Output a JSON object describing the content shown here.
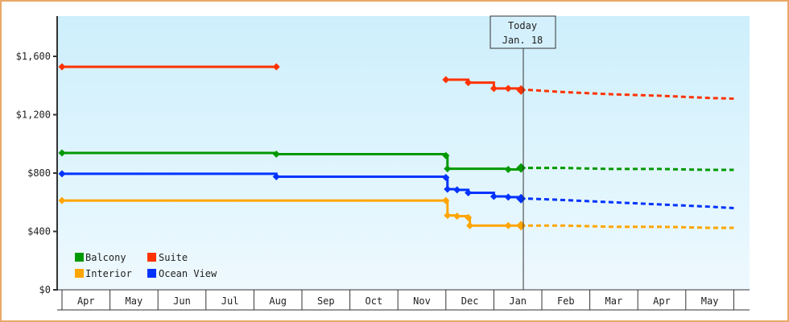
{
  "chart_data": {
    "type": "line",
    "title": "",
    "xlabel": "",
    "ylabel": "",
    "ylim": [
      0,
      1900
    ],
    "y_ticks": [
      "$0",
      "$400",
      "$800",
      "$1,200",
      "$1,600"
    ],
    "y_tick_values": [
      0,
      400,
      800,
      1200,
      1600
    ],
    "x_tick_labels": [
      "Apr",
      "May",
      "Jun",
      "Jul",
      "Aug",
      "Sep",
      "Oct",
      "Nov",
      "Dec",
      "Jan",
      "Feb",
      "Mar",
      "Apr",
      "May"
    ],
    "grid": false,
    "legend_position": "lower-left",
    "annotation": {
      "line1": "Today",
      "line2": "Jan. 18"
    },
    "colors": {
      "Balcony": "#009900",
      "Suite": "#ff3300",
      "Interior": "#ffa500",
      "Ocean View": "#0033ff"
    },
    "series": [
      {
        "name": "Suite",
        "segments": [
          {
            "x": [
              "Apr 1",
              "Aug 15"
            ],
            "values": [
              1528,
              1528
            ]
          }
        ],
        "history": {
          "x": [
            "Dec 1",
            "Dec 15",
            "Jan 1",
            "Jan 10",
            "Jan 18"
          ],
          "values": [
            1440,
            1420,
            1380,
            1380,
            1370
          ]
        },
        "forecast": {
          "x": [
            "Jan 18",
            "Feb 15",
            "Mar 15",
            "Apr 15",
            "May 15",
            "Jun 1"
          ],
          "values": [
            1370,
            1355,
            1340,
            1330,
            1315,
            1310
          ]
        }
      },
      {
        "name": "Balcony",
        "history": {
          "x": [
            "Apr 1",
            "Aug 15",
            "Dec 1",
            "Dec 2",
            "Jan 10",
            "Jan 18"
          ],
          "values": [
            938,
            930,
            920,
            830,
            825,
            835
          ]
        },
        "forecast": {
          "x": [
            "Jan 18",
            "Feb 15",
            "Mar 15",
            "Apr 15",
            "May 15",
            "Jun 1"
          ],
          "values": [
            835,
            835,
            828,
            828,
            822,
            822
          ]
        }
      },
      {
        "name": "Ocean View",
        "history": {
          "x": [
            "Apr 1",
            "Aug 15",
            "Dec 1",
            "Dec 2",
            "Dec 8",
            "Dec 15",
            "Jan 1",
            "Jan 10",
            "Jan 18"
          ],
          "values": [
            795,
            775,
            770,
            690,
            685,
            665,
            640,
            635,
            625
          ]
        },
        "forecast": {
          "x": [
            "Jan 18",
            "Feb 15",
            "Mar 15",
            "Apr 15",
            "May 15",
            "Jun 1"
          ],
          "values": [
            625,
            615,
            600,
            585,
            570,
            560
          ]
        }
      },
      {
        "name": "Interior",
        "history": {
          "x": [
            "Apr 1",
            "Dec 1",
            "Dec 2",
            "Dec 8",
            "Dec 15",
            "Dec 16",
            "Jan 10",
            "Jan 18"
          ],
          "values": [
            612,
            612,
            510,
            505,
            495,
            440,
            440,
            440
          ]
        },
        "forecast": {
          "x": [
            "Jan 18",
            "Feb 15",
            "Mar 15",
            "Apr 15",
            "May 15",
            "Jun 1"
          ],
          "values": [
            440,
            440,
            432,
            432,
            425,
            425
          ]
        }
      }
    ]
  },
  "legend": {
    "items": [
      {
        "label": "Balcony",
        "color": "#009900"
      },
      {
        "label": "Suite",
        "color": "#ff3300"
      },
      {
        "label": "Interior",
        "color": "#ffa500"
      },
      {
        "label": "Ocean View",
        "color": "#0033ff"
      }
    ]
  }
}
